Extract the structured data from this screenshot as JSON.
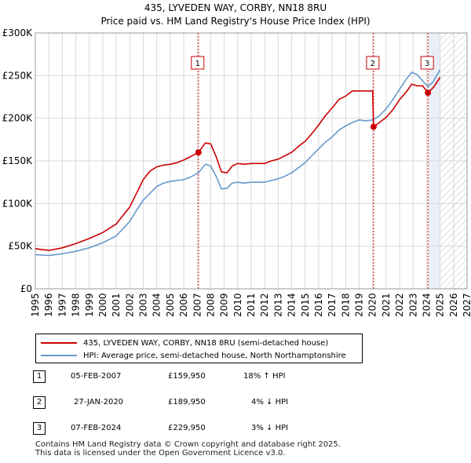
{
  "header": {
    "title": "435, LYVEDEN WAY, CORBY, NN18 8RU",
    "subtitle": "Price paid vs. HM Land Registry's House Price Index (HPI)"
  },
  "colors": {
    "property_line": "#cc0000",
    "hpi_line": "#6699cc",
    "grid": "#d9d9d9",
    "plot_background": "#eaeff7",
    "marker_line": "#cc0000"
  },
  "chart_data": {
    "type": "line",
    "title": "Price paid vs. HM Land Registry's House Price Index (HPI)",
    "xlabel": "",
    "ylabel": "",
    "xlim": [
      1995,
      2027
    ],
    "ylim": [
      0,
      300000
    ],
    "y_ticks": [
      {
        "value": 0,
        "label": "£0"
      },
      {
        "value": 50000,
        "label": "£50K"
      },
      {
        "value": 100000,
        "label": "£100K"
      },
      {
        "value": 150000,
        "label": "£150K"
      },
      {
        "value": 200000,
        "label": "£200K"
      },
      {
        "value": 250000,
        "label": "£250K"
      },
      {
        "value": 300000,
        "label": "£300K"
      }
    ],
    "x_ticks": [
      "1995",
      "1996",
      "1997",
      "1998",
      "1999",
      "2000",
      "2001",
      "2002",
      "2003",
      "2004",
      "2005",
      "2006",
      "2007",
      "2008",
      "2009",
      "2010",
      "2011",
      "2012",
      "2013",
      "2014",
      "2015",
      "2016",
      "2017",
      "2018",
      "2019",
      "2020",
      "2021",
      "2022",
      "2023",
      "2024",
      "2025",
      "2026",
      "2027"
    ],
    "shaded_region": {
      "from": 2024.1,
      "to": 2025.0,
      "label": "between last sale and present"
    },
    "future_region": {
      "from": 2025.0,
      "to": 2027
    },
    "series": [
      {
        "name": "435, LYVEDEN WAY, CORBY, NN18 8RU (semi-detached house)",
        "color": "#cc0000",
        "x": [
          1995.0,
          1996.0,
          1997.0,
          1998.0,
          1999.0,
          2000.0,
          2001.0,
          2002.0,
          2002.5,
          2003.0,
          2003.5,
          2004.0,
          2004.5,
          2005.0,
          2005.5,
          2006.0,
          2006.5,
          2007.09,
          2007.6,
          2008.0,
          2008.4,
          2008.8,
          2009.2,
          2009.6,
          2010.0,
          2010.5,
          2011.0,
          2011.5,
          2012.0,
          2012.5,
          2013.0,
          2013.5,
          2014.0,
          2014.5,
          2015.0,
          2015.5,
          2016.0,
          2016.5,
          2017.0,
          2017.5,
          2018.0,
          2018.5,
          2019.0,
          2019.5,
          2020.0,
          2020.07,
          2020.5,
          2021.0,
          2021.5,
          2022.0,
          2022.5,
          2022.9,
          2023.3,
          2023.7,
          2024.1,
          2024.5,
          2025.0
        ],
        "values": [
          47000,
          45000,
          48000,
          53000,
          59000,
          66000,
          76000,
          96000,
          112000,
          128000,
          138000,
          143000,
          145000,
          146000,
          148000,
          151000,
          155000,
          159950,
          171000,
          170000,
          155000,
          137000,
          136000,
          144000,
          147000,
          146000,
          147000,
          147000,
          147000,
          150000,
          152000,
          156000,
          160000,
          167000,
          173000,
          182000,
          192000,
          203000,
          212000,
          222000,
          226000,
          232000,
          232000,
          232000,
          232000,
          189950,
          195000,
          201000,
          210000,
          222000,
          231000,
          240000,
          238000,
          238000,
          229950,
          236000,
          248000
        ]
      },
      {
        "name": "HPI: Average price, semi-detached house, North Northamptonshire",
        "color": "#6699cc",
        "x": [
          1995.0,
          1996.0,
          1997.0,
          1998.0,
          1999.0,
          2000.0,
          2001.0,
          2002.0,
          2002.5,
          2003.0,
          2003.5,
          2004.0,
          2004.5,
          2005.0,
          2005.5,
          2006.0,
          2006.5,
          2007.09,
          2007.6,
          2008.0,
          2008.4,
          2008.8,
          2009.2,
          2009.6,
          2010.0,
          2010.5,
          2011.0,
          2011.5,
          2012.0,
          2012.5,
          2013.0,
          2013.5,
          2014.0,
          2014.5,
          2015.0,
          2015.5,
          2016.0,
          2016.5,
          2017.0,
          2017.5,
          2018.0,
          2018.5,
          2019.0,
          2019.5,
          2020.0,
          2020.5,
          2021.0,
          2021.5,
          2022.0,
          2022.5,
          2022.9,
          2023.3,
          2023.7,
          2024.1,
          2024.5,
          2025.0
        ],
        "values": [
          40000,
          39000,
          41000,
          44000,
          48000,
          54000,
          62000,
          79000,
          92000,
          104000,
          112000,
          120000,
          124000,
          126000,
          127000,
          128000,
          131000,
          136000,
          146000,
          144000,
          132000,
          117000,
          118000,
          124000,
          125000,
          124000,
          125000,
          125000,
          125000,
          127000,
          129000,
          132000,
          136000,
          142000,
          148000,
          156000,
          164000,
          172000,
          178000,
          186000,
          191000,
          195000,
          198000,
          197000,
          198000,
          203000,
          211000,
          222000,
          234000,
          246000,
          254000,
          251000,
          244000,
          237000,
          243000,
          257000
        ]
      }
    ],
    "sales": [
      {
        "marker": "1",
        "x": 2007.09,
        "value": 159950
      },
      {
        "marker": "2",
        "x": 2020.07,
        "value": 189950
      },
      {
        "marker": "3",
        "x": 2024.1,
        "value": 229950
      }
    ]
  },
  "legend": {
    "property_label": "435, LYVEDEN WAY, CORBY, NN18 8RU (semi-detached house)",
    "hpi_label": "HPI: Average price, semi-detached house, North Northamptonshire"
  },
  "transactions": [
    {
      "marker": "1",
      "date": "05-FEB-2007",
      "price": "£159,950",
      "hpi": "18% ↑ HPI"
    },
    {
      "marker": "2",
      "date": "27-JAN-2020",
      "price": "£189,950",
      "hpi": "4% ↓ HPI"
    },
    {
      "marker": "3",
      "date": "07-FEB-2024",
      "price": "£229,950",
      "hpi": "3% ↓ HPI"
    }
  ],
  "footer": {
    "line1": "Contains HM Land Registry data © Crown copyright and database right 2025.",
    "line2": "This data is licensed under the Open Government Licence v3.0."
  }
}
